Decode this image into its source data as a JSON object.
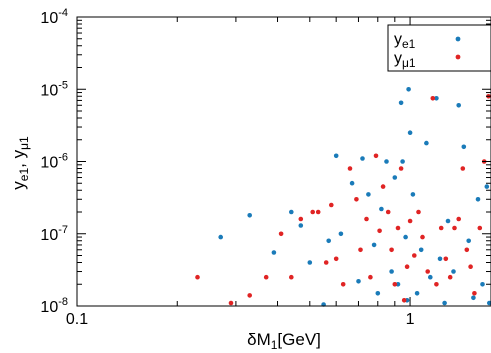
{
  "chart_data": {
    "type": "scatter",
    "title": "",
    "xlabel": "δM",
    "xlabel_sub": "1",
    "xlabel_unit": "[GeV]",
    "ylabel_parts": [
      {
        "text": "y",
        "sub": "e1"
      },
      {
        "text": ", y",
        "sub": "μ1"
      }
    ],
    "x_scale": "log",
    "y_scale": "log",
    "xlim": [
      0.1,
      1.75
    ],
    "ylim": [
      1e-08,
      0.0001
    ],
    "grid": false,
    "legend_position": "top-right",
    "x_ticks": [
      {
        "value": 0.1,
        "label": "0.1"
      },
      {
        "value": 1,
        "label": "1"
      }
    ],
    "y_ticks": [
      {
        "value": 1e-08,
        "base": "10",
        "exp": "-8"
      },
      {
        "value": 1e-07,
        "base": "10",
        "exp": "-7"
      },
      {
        "value": 1e-06,
        "base": "10",
        "exp": "-6"
      },
      {
        "value": 1e-05,
        "base": "10",
        "exp": "-5"
      },
      {
        "value": 0.0001,
        "base": "10",
        "exp": "-4"
      }
    ],
    "series": [
      {
        "name": "y",
        "name_sub": "e1",
        "color": "#1a7bb9",
        "points": [
          [
            0.27,
            9e-08
          ],
          [
            0.33,
            1.8e-07
          ],
          [
            0.39,
            5.5e-08
          ],
          [
            0.44,
            2e-07
          ],
          [
            0.47,
            1.3e-07
          ],
          [
            0.5,
            4e-08
          ],
          [
            0.55,
            1.05e-08
          ],
          [
            0.57,
            8e-08
          ],
          [
            0.6,
            1.2e-06
          ],
          [
            0.62,
            1e-07
          ],
          [
            0.67,
            5e-07
          ],
          [
            0.7,
            2.2e-08
          ],
          [
            0.72,
            1.1e-06
          ],
          [
            0.75,
            3.5e-07
          ],
          [
            0.78,
            7e-08
          ],
          [
            0.8,
            1.5e-08
          ],
          [
            0.82,
            2.2e-07
          ],
          [
            0.85,
            1e-06
          ],
          [
            0.88,
            3e-08
          ],
          [
            0.9,
            6e-07
          ],
          [
            0.92,
            2e-08
          ],
          [
            0.94,
            6.5e-06
          ],
          [
            0.95,
            1e-06
          ],
          [
            0.97,
            9e-08
          ],
          [
            0.98,
            1.2e-08
          ],
          [
            0.99,
            1e-05
          ],
          [
            1.0,
            2.5e-06
          ],
          [
            1.02,
            3.5e-07
          ],
          [
            1.05,
            1.5e-08
          ],
          [
            1.08,
            6e-08
          ],
          [
            1.12,
            1.8e-06
          ],
          [
            1.15,
            2.5e-08
          ],
          [
            1.2,
            7.5e-06
          ],
          [
            1.23,
            4.5e-08
          ],
          [
            1.27,
            1.1e-08
          ],
          [
            1.3,
            1.5e-07
          ],
          [
            1.35,
            3e-08
          ],
          [
            1.4,
            6e-06
          ],
          [
            1.45,
            1.6e-06
          ],
          [
            1.5,
            8e-08
          ],
          [
            1.55,
            1.3e-08
          ],
          [
            1.6,
            3e-07
          ],
          [
            1.65,
            2e-08
          ],
          [
            1.7,
            4.5e-07
          ],
          [
            1.73,
            1.1e-08
          ]
        ]
      },
      {
        "name": "y",
        "name_sub": "μ1",
        "color": "#e02424",
        "points": [
          [
            0.23,
            2.5e-08
          ],
          [
            0.29,
            1.1e-08
          ],
          [
            0.33,
            1.4e-08
          ],
          [
            0.37,
            2.5e-08
          ],
          [
            0.41,
            1e-07
          ],
          [
            0.44,
            2.5e-08
          ],
          [
            0.47,
            1.6e-07
          ],
          [
            0.51,
            2e-07
          ],
          [
            0.53,
            2e-07
          ],
          [
            0.56,
            4e-08
          ],
          [
            0.58,
            2.5e-07
          ],
          [
            0.6,
            4.5e-08
          ],
          [
            0.63,
            2e-08
          ],
          [
            0.66,
            8e-07
          ],
          [
            0.69,
            3e-07
          ],
          [
            0.71,
            6e-08
          ],
          [
            0.74,
            1.6e-07
          ],
          [
            0.76,
            2.5e-08
          ],
          [
            0.79,
            1.2e-06
          ],
          [
            0.81,
            1.1e-07
          ],
          [
            0.83,
            4.5e-07
          ],
          [
            0.86,
            2e-07
          ],
          [
            0.88,
            6e-08
          ],
          [
            0.9,
            2e-08
          ],
          [
            0.92,
            1.2e-07
          ],
          [
            0.94,
            8e-07
          ],
          [
            0.96,
            1.2e-08
          ],
          [
            0.98,
            3.5e-08
          ],
          [
            1.0,
            1.5e-07
          ],
          [
            1.03,
            5e-08
          ],
          [
            1.06,
            2e-07
          ],
          [
            1.09,
            9e-08
          ],
          [
            1.13,
            3e-08
          ],
          [
            1.17,
            7.5e-06
          ],
          [
            1.2,
            2e-08
          ],
          [
            1.24,
            1.2e-07
          ],
          [
            1.28,
            4.5e-08
          ],
          [
            1.32,
            2.5e-08
          ],
          [
            1.36,
            1.2e-07
          ],
          [
            1.4,
            1.6e-07
          ],
          [
            1.44,
            8e-07
          ],
          [
            1.48,
            6e-08
          ],
          [
            1.52,
            3.5e-08
          ],
          [
            1.56,
            1.5e-08
          ],
          [
            1.62,
            1.2e-07
          ],
          [
            1.67,
            1e-06
          ],
          [
            1.72,
            8e-06
          ]
        ]
      }
    ]
  }
}
